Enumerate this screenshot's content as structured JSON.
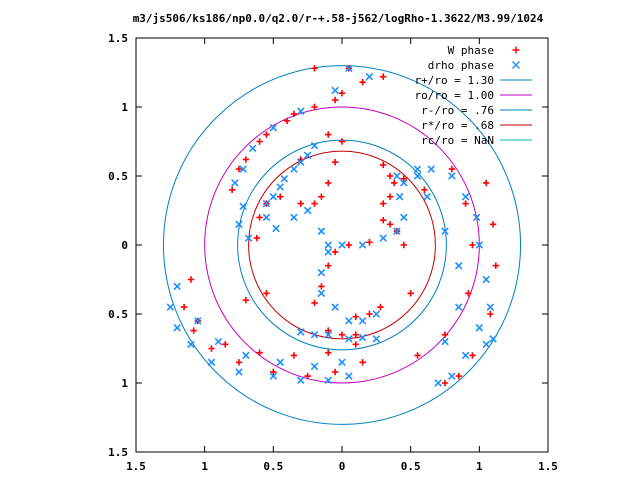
{
  "chart_data": {
    "type": "scatter",
    "title": "m3/js506/ks186/np0.0/q2.0/r-+.58-j562/logRho-1.3622/M3.99/1024",
    "xlim": [
      -1.5,
      1.5
    ],
    "ylim": [
      -1.5,
      1.5
    ],
    "x_ticks": [
      -1.5,
      -1,
      -0.5,
      0,
      0.5,
      1,
      1.5
    ],
    "y_ticks": [
      -1.5,
      -1,
      -0.5,
      0,
      0.5,
      1,
      1.5
    ],
    "x_tick_labels": [
      "1.5",
      "1",
      "0.5",
      "0",
      "0.5",
      "1",
      "1.5"
    ],
    "y_tick_labels": [
      "1.5",
      "1",
      "0.5",
      "0",
      "0.5",
      "1",
      "1.5"
    ],
    "grid": false,
    "legend_position": "top-right",
    "series": [
      {
        "name": "W phase",
        "marker": "plus",
        "color": "#ff0000",
        "points": [
          [
            0.0,
            0.75
          ],
          [
            -0.05,
            0.6
          ],
          [
            -0.1,
            0.45
          ],
          [
            -0.15,
            0.35
          ],
          [
            -0.2,
            0.3
          ],
          [
            -0.3,
            0.3
          ],
          [
            -0.45,
            0.35
          ],
          [
            -0.55,
            0.3
          ],
          [
            -0.6,
            0.2
          ],
          [
            -0.62,
            0.05
          ],
          [
            0.3,
            0.58
          ],
          [
            0.35,
            0.5
          ],
          [
            0.38,
            0.45
          ],
          [
            0.35,
            0.35
          ],
          [
            0.3,
            0.3
          ],
          [
            0.35,
            0.15
          ],
          [
            0.4,
            0.1
          ],
          [
            0.45,
            0.0
          ],
          [
            0.3,
            0.18
          ],
          [
            0.2,
            0.02
          ],
          [
            0.05,
            0.0
          ],
          [
            -0.05,
            -0.05
          ],
          [
            -0.1,
            -0.15
          ],
          [
            -0.15,
            -0.3
          ],
          [
            -0.2,
            -0.42
          ],
          [
            0.1,
            -0.52
          ],
          [
            0.2,
            -0.5
          ],
          [
            0.28,
            -0.45
          ],
          [
            -0.1,
            -0.62
          ],
          [
            0.0,
            -0.65
          ],
          [
            0.1,
            -0.65
          ],
          [
            -0.1,
            0.8
          ],
          [
            -0.3,
            0.62
          ],
          [
            0.6,
            0.4
          ],
          [
            0.45,
            0.48
          ],
          [
            -0.55,
            -0.35
          ],
          [
            -0.7,
            -0.4
          ],
          [
            1.05,
            0.45
          ],
          [
            1.1,
            0.15
          ],
          [
            1.12,
            -0.15
          ],
          [
            1.08,
            -0.5
          ],
          [
            0.95,
            -0.8
          ],
          [
            0.85,
            -0.95
          ],
          [
            0.75,
            -1.0
          ],
          [
            0.8,
            0.55
          ],
          [
            0.9,
            0.3
          ],
          [
            0.95,
            0.0
          ],
          [
            0.92,
            -0.35
          ],
          [
            0.75,
            -0.65
          ],
          [
            0.55,
            -0.8
          ],
          [
            0.5,
            -0.35
          ],
          [
            -1.1,
            -0.25
          ],
          [
            -1.15,
            -0.45
          ],
          [
            -1.08,
            -0.62
          ],
          [
            -0.95,
            -0.75
          ],
          [
            -0.75,
            -0.85
          ],
          [
            -0.5,
            -0.92
          ],
          [
            -0.25,
            -0.95
          ],
          [
            -0.05,
            -0.92
          ],
          [
            0.15,
            -0.85
          ],
          [
            -1.05,
            -0.55
          ],
          [
            -0.85,
            -0.72
          ],
          [
            -0.6,
            -0.78
          ],
          [
            -0.35,
            -0.8
          ],
          [
            -0.1,
            -0.78
          ],
          [
            0.1,
            -0.72
          ],
          [
            -0.75,
            0.55
          ],
          [
            -0.6,
            0.75
          ],
          [
            -0.4,
            0.9
          ],
          [
            -0.2,
            1.0
          ],
          [
            -0.0,
            1.1
          ],
          [
            0.15,
            1.18
          ],
          [
            0.05,
            1.28
          ],
          [
            -0.2,
            1.28
          ],
          [
            -0.8,
            0.4
          ],
          [
            -0.7,
            0.62
          ],
          [
            -0.55,
            0.8
          ],
          [
            -0.35,
            0.95
          ],
          [
            -0.05,
            1.05
          ],
          [
            0.3,
            1.22
          ]
        ]
      },
      {
        "name": "drho phase",
        "marker": "cross",
        "color": "#1e90ff",
        "points": [
          [
            0.05,
            1.28
          ],
          [
            0.2,
            1.22
          ],
          [
            -0.05,
            1.12
          ],
          [
            -0.3,
            0.97
          ],
          [
            -0.5,
            0.85
          ],
          [
            -0.65,
            0.7
          ],
          [
            -0.72,
            0.55
          ],
          [
            -0.78,
            0.45
          ],
          [
            -0.2,
            0.72
          ],
          [
            -0.3,
            0.6
          ],
          [
            -0.42,
            0.48
          ],
          [
            -0.5,
            0.35
          ],
          [
            -0.55,
            0.2
          ],
          [
            -0.48,
            0.12
          ],
          [
            -0.35,
            0.2
          ],
          [
            -0.25,
            0.25
          ],
          [
            -0.15,
            0.1
          ],
          [
            -0.1,
            0.0
          ],
          [
            0.0,
            0.0
          ],
          [
            0.15,
            0.0
          ],
          [
            0.3,
            0.05
          ],
          [
            0.4,
            0.1
          ],
          [
            0.45,
            0.2
          ],
          [
            0.42,
            0.35
          ],
          [
            0.4,
            0.5
          ],
          [
            0.45,
            0.45
          ],
          [
            0.55,
            0.5
          ],
          [
            0.65,
            0.55
          ],
          [
            0.8,
            0.5
          ],
          [
            0.9,
            0.35
          ],
          [
            0.98,
            0.2
          ],
          [
            1.0,
            0.0
          ],
          [
            1.05,
            -0.25
          ],
          [
            1.08,
            -0.45
          ],
          [
            1.0,
            -0.6
          ],
          [
            0.9,
            -0.8
          ],
          [
            0.8,
            -0.95
          ],
          [
            0.7,
            -1.0
          ],
          [
            0.55,
            0.55
          ],
          [
            0.62,
            0.35
          ],
          [
            0.75,
            0.1
          ],
          [
            0.85,
            -0.15
          ],
          [
            0.85,
            -0.45
          ],
          [
            0.75,
            -0.7
          ],
          [
            1.1,
            -0.68
          ],
          [
            1.05,
            -0.72
          ],
          [
            -0.1,
            -0.05
          ],
          [
            -0.15,
            -0.2
          ],
          [
            -0.15,
            -0.35
          ],
          [
            -0.05,
            -0.45
          ],
          [
            0.05,
            -0.55
          ],
          [
            0.15,
            -0.55
          ],
          [
            0.25,
            -0.5
          ],
          [
            -0.1,
            -0.65
          ],
          [
            0.05,
            -0.68
          ],
          [
            0.15,
            -0.67
          ],
          [
            0.25,
            -0.68
          ],
          [
            -0.2,
            -0.65
          ],
          [
            -0.3,
            -0.63
          ],
          [
            -1.2,
            -0.3
          ],
          [
            -1.25,
            -0.45
          ],
          [
            -1.2,
            -0.6
          ],
          [
            -1.1,
            -0.72
          ],
          [
            -0.95,
            -0.85
          ],
          [
            -0.75,
            -0.92
          ],
          [
            -0.5,
            -0.95
          ],
          [
            -0.3,
            -0.98
          ],
          [
            -0.1,
            -0.98
          ],
          [
            0.05,
            -0.95
          ],
          [
            -1.05,
            -0.55
          ],
          [
            -0.9,
            -0.7
          ],
          [
            -0.7,
            -0.8
          ],
          [
            -0.45,
            -0.85
          ],
          [
            -0.2,
            -0.88
          ],
          [
            0.0,
            -0.85
          ],
          [
            -0.72,
            0.28
          ],
          [
            -0.75,
            0.15
          ],
          [
            -0.68,
            0.05
          ],
          [
            -0.55,
            0.3
          ],
          [
            -0.45,
            0.42
          ],
          [
            -0.35,
            0.55
          ],
          [
            -0.25,
            0.65
          ]
        ]
      }
    ],
    "circles": [
      {
        "name": "r+/ro = 1.30",
        "radius": 1.3,
        "color": "#0080c0"
      },
      {
        "name": "ro/ro = 1.00",
        "radius": 1.0,
        "color": "#c000c0"
      },
      {
        "name": "r-/ro = .76",
        "radius": 0.76,
        "color": "#0080c0"
      },
      {
        "name": "r*/ro = .68",
        "radius": 0.68,
        "color": "#c00000"
      },
      {
        "name": "rc/ro = NaN",
        "radius": null,
        "color": "#00c0c0"
      }
    ]
  }
}
